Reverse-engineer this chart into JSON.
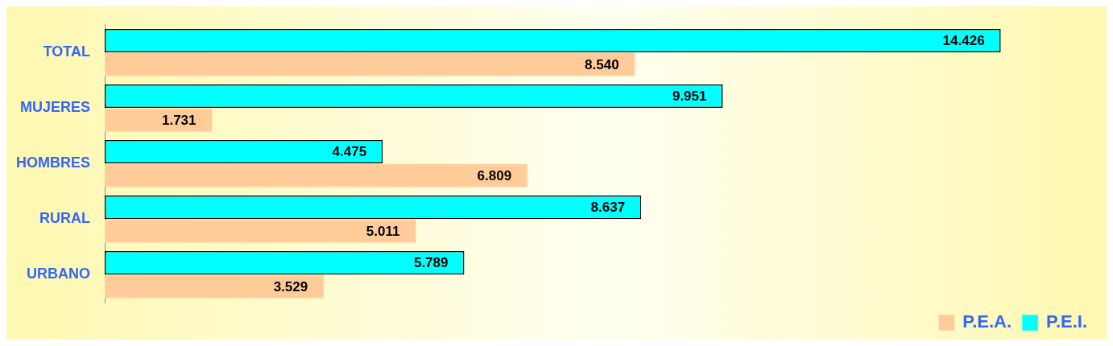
{
  "chart_data": {
    "type": "bar",
    "orientation": "horizontal",
    "categories": [
      "TOTAL",
      "MUJERES",
      "HOMBRES",
      "RURAL",
      "URBANO"
    ],
    "series": [
      {
        "name": "P.E.I.",
        "color": "#00ffff",
        "values": [
          14.426,
          9.951,
          4.475,
          8.637,
          5.789
        ],
        "value_labels": [
          "14.426",
          "9.951",
          "4.475",
          "8.637",
          "5.789"
        ]
      },
      {
        "name": "P.E.A.",
        "color": "#ffcc99",
        "values": [
          8.54,
          1.731,
          6.809,
          5.011,
          3.529
        ],
        "value_labels": [
          "8.540",
          "1.731",
          "6.809",
          "5.011",
          "3.529"
        ]
      }
    ],
    "tick_labels": "y",
    "legend": "bottom right",
    "grid": false
  }
}
